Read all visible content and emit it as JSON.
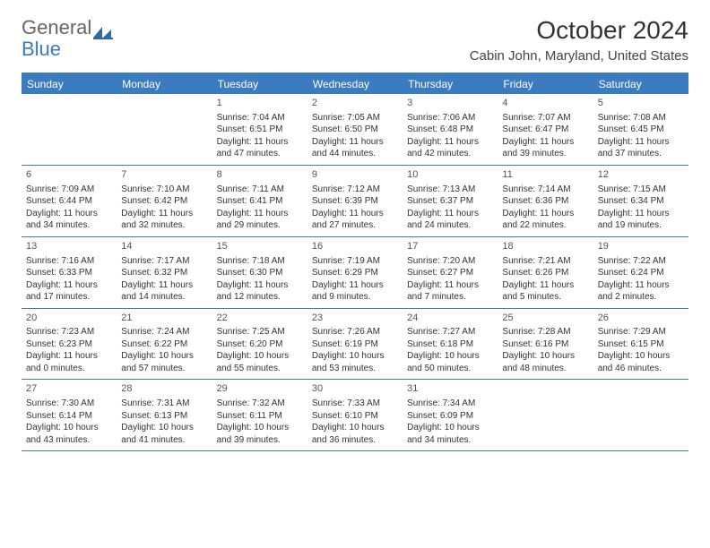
{
  "brand": {
    "part1": "General",
    "part2": "Blue"
  },
  "title": "October 2024",
  "location": "Cabin John, Maryland, United States",
  "colors": {
    "header_bg": "#3b7bbf",
    "header_text": "#ffffff",
    "rule": "#3b7bbf",
    "body_text": "#333333",
    "background": "#ffffff"
  },
  "typography": {
    "title_fontsize": 28,
    "location_fontsize": 15,
    "dayhead_fontsize": 12,
    "cell_fontsize": 10
  },
  "layout": {
    "columns": 7,
    "rows": 5
  },
  "day_names": [
    "Sunday",
    "Monday",
    "Tuesday",
    "Wednesday",
    "Thursday",
    "Friday",
    "Saturday"
  ],
  "weeks": [
    [
      null,
      null,
      {
        "n": "1",
        "sr": "Sunrise: 7:04 AM",
        "ss": "Sunset: 6:51 PM",
        "dl": "Daylight: 11 hours and 47 minutes."
      },
      {
        "n": "2",
        "sr": "Sunrise: 7:05 AM",
        "ss": "Sunset: 6:50 PM",
        "dl": "Daylight: 11 hours and 44 minutes."
      },
      {
        "n": "3",
        "sr": "Sunrise: 7:06 AM",
        "ss": "Sunset: 6:48 PM",
        "dl": "Daylight: 11 hours and 42 minutes."
      },
      {
        "n": "4",
        "sr": "Sunrise: 7:07 AM",
        "ss": "Sunset: 6:47 PM",
        "dl": "Daylight: 11 hours and 39 minutes."
      },
      {
        "n": "5",
        "sr": "Sunrise: 7:08 AM",
        "ss": "Sunset: 6:45 PM",
        "dl": "Daylight: 11 hours and 37 minutes."
      }
    ],
    [
      {
        "n": "6",
        "sr": "Sunrise: 7:09 AM",
        "ss": "Sunset: 6:44 PM",
        "dl": "Daylight: 11 hours and 34 minutes."
      },
      {
        "n": "7",
        "sr": "Sunrise: 7:10 AM",
        "ss": "Sunset: 6:42 PM",
        "dl": "Daylight: 11 hours and 32 minutes."
      },
      {
        "n": "8",
        "sr": "Sunrise: 7:11 AM",
        "ss": "Sunset: 6:41 PM",
        "dl": "Daylight: 11 hours and 29 minutes."
      },
      {
        "n": "9",
        "sr": "Sunrise: 7:12 AM",
        "ss": "Sunset: 6:39 PM",
        "dl": "Daylight: 11 hours and 27 minutes."
      },
      {
        "n": "10",
        "sr": "Sunrise: 7:13 AM",
        "ss": "Sunset: 6:37 PM",
        "dl": "Daylight: 11 hours and 24 minutes."
      },
      {
        "n": "11",
        "sr": "Sunrise: 7:14 AM",
        "ss": "Sunset: 6:36 PM",
        "dl": "Daylight: 11 hours and 22 minutes."
      },
      {
        "n": "12",
        "sr": "Sunrise: 7:15 AM",
        "ss": "Sunset: 6:34 PM",
        "dl": "Daylight: 11 hours and 19 minutes."
      }
    ],
    [
      {
        "n": "13",
        "sr": "Sunrise: 7:16 AM",
        "ss": "Sunset: 6:33 PM",
        "dl": "Daylight: 11 hours and 17 minutes."
      },
      {
        "n": "14",
        "sr": "Sunrise: 7:17 AM",
        "ss": "Sunset: 6:32 PM",
        "dl": "Daylight: 11 hours and 14 minutes."
      },
      {
        "n": "15",
        "sr": "Sunrise: 7:18 AM",
        "ss": "Sunset: 6:30 PM",
        "dl": "Daylight: 11 hours and 12 minutes."
      },
      {
        "n": "16",
        "sr": "Sunrise: 7:19 AM",
        "ss": "Sunset: 6:29 PM",
        "dl": "Daylight: 11 hours and 9 minutes."
      },
      {
        "n": "17",
        "sr": "Sunrise: 7:20 AM",
        "ss": "Sunset: 6:27 PM",
        "dl": "Daylight: 11 hours and 7 minutes."
      },
      {
        "n": "18",
        "sr": "Sunrise: 7:21 AM",
        "ss": "Sunset: 6:26 PM",
        "dl": "Daylight: 11 hours and 5 minutes."
      },
      {
        "n": "19",
        "sr": "Sunrise: 7:22 AM",
        "ss": "Sunset: 6:24 PM",
        "dl": "Daylight: 11 hours and 2 minutes."
      }
    ],
    [
      {
        "n": "20",
        "sr": "Sunrise: 7:23 AM",
        "ss": "Sunset: 6:23 PM",
        "dl": "Daylight: 11 hours and 0 minutes."
      },
      {
        "n": "21",
        "sr": "Sunrise: 7:24 AM",
        "ss": "Sunset: 6:22 PM",
        "dl": "Daylight: 10 hours and 57 minutes."
      },
      {
        "n": "22",
        "sr": "Sunrise: 7:25 AM",
        "ss": "Sunset: 6:20 PM",
        "dl": "Daylight: 10 hours and 55 minutes."
      },
      {
        "n": "23",
        "sr": "Sunrise: 7:26 AM",
        "ss": "Sunset: 6:19 PM",
        "dl": "Daylight: 10 hours and 53 minutes."
      },
      {
        "n": "24",
        "sr": "Sunrise: 7:27 AM",
        "ss": "Sunset: 6:18 PM",
        "dl": "Daylight: 10 hours and 50 minutes."
      },
      {
        "n": "25",
        "sr": "Sunrise: 7:28 AM",
        "ss": "Sunset: 6:16 PM",
        "dl": "Daylight: 10 hours and 48 minutes."
      },
      {
        "n": "26",
        "sr": "Sunrise: 7:29 AM",
        "ss": "Sunset: 6:15 PM",
        "dl": "Daylight: 10 hours and 46 minutes."
      }
    ],
    [
      {
        "n": "27",
        "sr": "Sunrise: 7:30 AM",
        "ss": "Sunset: 6:14 PM",
        "dl": "Daylight: 10 hours and 43 minutes."
      },
      {
        "n": "28",
        "sr": "Sunrise: 7:31 AM",
        "ss": "Sunset: 6:13 PM",
        "dl": "Daylight: 10 hours and 41 minutes."
      },
      {
        "n": "29",
        "sr": "Sunrise: 7:32 AM",
        "ss": "Sunset: 6:11 PM",
        "dl": "Daylight: 10 hours and 39 minutes."
      },
      {
        "n": "30",
        "sr": "Sunrise: 7:33 AM",
        "ss": "Sunset: 6:10 PM",
        "dl": "Daylight: 10 hours and 36 minutes."
      },
      {
        "n": "31",
        "sr": "Sunrise: 7:34 AM",
        "ss": "Sunset: 6:09 PM",
        "dl": "Daylight: 10 hours and 34 minutes."
      },
      null,
      null
    ]
  ]
}
